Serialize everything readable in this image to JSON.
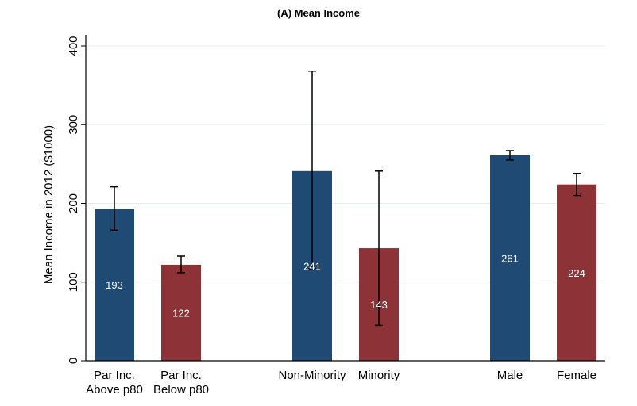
{
  "chart_data": {
    "type": "bar",
    "title": "(A)  Mean Income",
    "xlabel": "",
    "ylabel": "Mean Income in 2012 ($1000)",
    "ylim": [
      0,
      400
    ],
    "yticks": [
      0,
      100,
      200,
      300,
      400
    ],
    "grid": true,
    "categories": [
      [
        "Par Inc.",
        "Above p80"
      ],
      [
        "Par Inc.",
        "Below p80"
      ],
      [
        "Non-Minority"
      ],
      [
        "Minority"
      ],
      [
        "Male"
      ],
      [
        "Female"
      ]
    ],
    "groups": [
      [
        0,
        1
      ],
      [
        2,
        3
      ],
      [
        4,
        5
      ]
    ],
    "values": [
      193,
      122,
      241,
      143,
      261,
      224
    ],
    "value_labels": [
      "193",
      "122",
      "241",
      "143",
      "261",
      "224"
    ],
    "error_low": [
      166,
      112,
      117,
      45,
      255,
      210
    ],
    "error_high": [
      221,
      133,
      368,
      241,
      267,
      238
    ],
    "colors": {
      "primary": "#1f4a74",
      "secondary": "#8d3237",
      "grid": "#e6eded",
      "axis": "#000000"
    }
  }
}
